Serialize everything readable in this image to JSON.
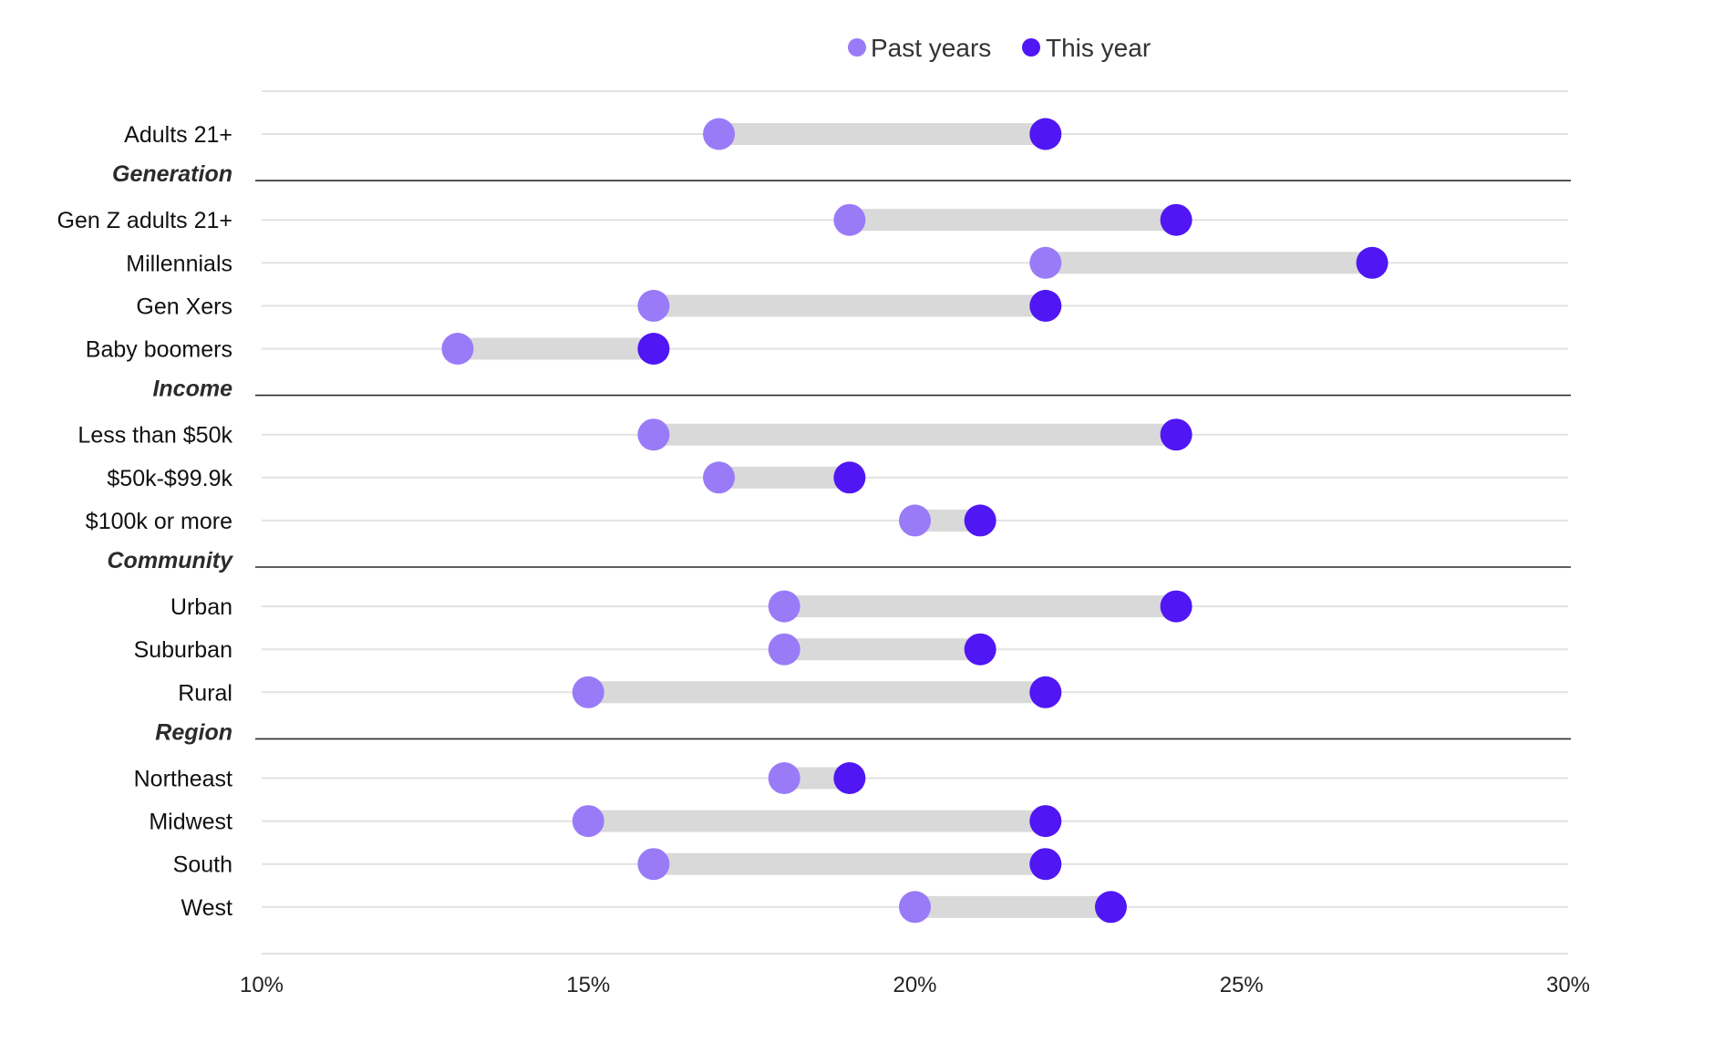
{
  "chart_data": {
    "type": "dumbbell",
    "xlim": [
      10,
      30
    ],
    "x_ticks": [
      10,
      15,
      20,
      25,
      30
    ],
    "x_tick_labels": [
      "10%",
      "15%",
      "20%",
      "25%",
      "30%"
    ],
    "legend_position": "top-center",
    "series": [
      {
        "name": "Past years",
        "color": "#9a7bf7"
      },
      {
        "name": "This year",
        "color": "#5016f4"
      }
    ],
    "connector_color": "#d9d9d9",
    "rows": [
      {
        "kind": "item",
        "label": "Adults 21+",
        "past": 17,
        "current": 22
      },
      {
        "kind": "group",
        "label": "Generation"
      },
      {
        "kind": "item",
        "label": "Gen Z adults 21+",
        "past": 19,
        "current": 24
      },
      {
        "kind": "item",
        "label": "Millennials",
        "past": 22,
        "current": 27
      },
      {
        "kind": "item",
        "label": "Gen Xers",
        "past": 16,
        "current": 22
      },
      {
        "kind": "item",
        "label": "Baby boomers",
        "past": 13,
        "current": 16
      },
      {
        "kind": "group",
        "label": "Income"
      },
      {
        "kind": "item",
        "label": "Less than $50k",
        "past": 16,
        "current": 24
      },
      {
        "kind": "item",
        "label": "$50k-$99.9k",
        "past": 17,
        "current": 19
      },
      {
        "kind": "item",
        "label": "$100k or more",
        "past": 20,
        "current": 21
      },
      {
        "kind": "group",
        "label": "Community"
      },
      {
        "kind": "item",
        "label": "Urban",
        "past": 18,
        "current": 24
      },
      {
        "kind": "item",
        "label": "Suburban",
        "past": 18,
        "current": 21
      },
      {
        "kind": "item",
        "label": "Rural",
        "past": 15,
        "current": 22
      },
      {
        "kind": "group",
        "label": "Region"
      },
      {
        "kind": "item",
        "label": "Northeast",
        "past": 18,
        "current": 19
      },
      {
        "kind": "item",
        "label": "Midwest",
        "past": 15,
        "current": 22
      },
      {
        "kind": "item",
        "label": "South",
        "past": 16,
        "current": 22
      },
      {
        "kind": "item",
        "label": "West",
        "past": 20,
        "current": 23
      }
    ]
  }
}
